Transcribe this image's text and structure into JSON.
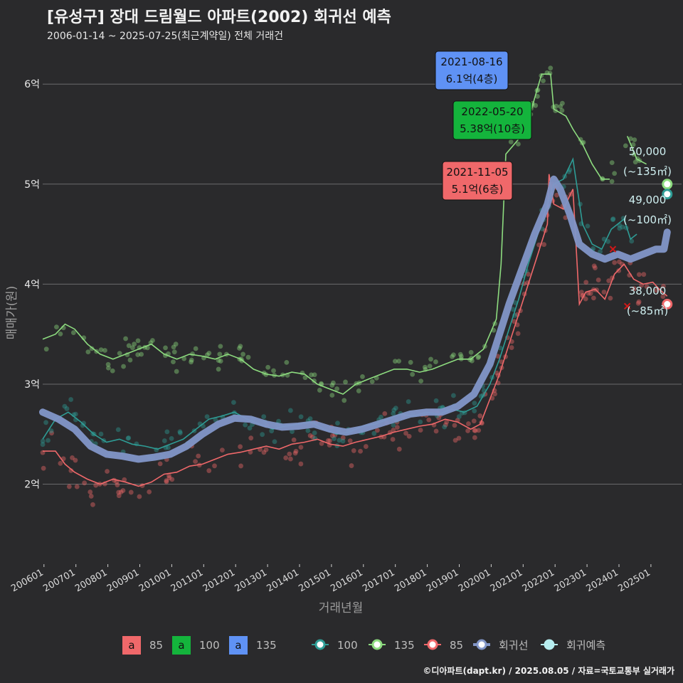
{
  "title": "[유성구] 장대 드림월드 아파트(2002) 회귀선 예측",
  "subtitle": "2006-01-14 ~ 2025-07-25(최근계약일) 전체 거래건",
  "footer": "©디아파트(dapt.kr) / 2025.08.05 / 자료=국토교통부 실거래가",
  "chart_data": {
    "type": "line",
    "xlabel": "거래년월",
    "ylabel": "매매가(원)",
    "xlim": [
      2006.0,
      2026.0
    ],
    "ylim": [
      1.2,
      6.4
    ],
    "y_ticks": [
      {
        "v": 2,
        "label": "2억"
      },
      {
        "v": 3,
        "label": "3억"
      },
      {
        "v": 4,
        "label": "4억"
      },
      {
        "v": 5,
        "label": "5억"
      },
      {
        "v": 6,
        "label": "6억"
      }
    ],
    "x_ticks": [
      "200601",
      "200701",
      "200801",
      "200901",
      "201001",
      "201101",
      "201201",
      "201301",
      "201401",
      "201501",
      "201601",
      "201701",
      "201801",
      "201901",
      "202001",
      "202101",
      "202201",
      "202301",
      "202401",
      "202501"
    ],
    "colors": {
      "s85": "#f0686a",
      "s100": "#2e9d96",
      "s135": "#8ddc7f",
      "reg": "#8296c8",
      "pred": "#b7eef0",
      "box85": "#f0686a",
      "box100": "#14b43c",
      "box135": "#5f92f5"
    },
    "series": [
      {
        "name": "85",
        "color": "#f0686a",
        "points": [
          [
            2006.0,
            2.33
          ],
          [
            2006.4,
            2.33
          ],
          [
            2006.7,
            2.2
          ],
          [
            2007.0,
            2.12
          ],
          [
            2007.4,
            2.05
          ],
          [
            2007.8,
            2.0
          ],
          [
            2008.2,
            2.05
          ],
          [
            2008.6,
            2.02
          ],
          [
            2009.0,
            1.98
          ],
          [
            2009.4,
            2.02
          ],
          [
            2009.8,
            2.1
          ],
          [
            2010.2,
            2.12
          ],
          [
            2010.6,
            2.18
          ],
          [
            2011.0,
            2.2
          ],
          [
            2011.4,
            2.25
          ],
          [
            2011.8,
            2.3
          ],
          [
            2012.2,
            2.32
          ],
          [
            2012.6,
            2.35
          ],
          [
            2013.0,
            2.38
          ],
          [
            2013.4,
            2.35
          ],
          [
            2013.8,
            2.4
          ],
          [
            2014.2,
            2.42
          ],
          [
            2014.6,
            2.45
          ],
          [
            2015.0,
            2.4
          ],
          [
            2015.4,
            2.38
          ],
          [
            2015.8,
            2.42
          ],
          [
            2016.2,
            2.45
          ],
          [
            2016.6,
            2.48
          ],
          [
            2017.0,
            2.52
          ],
          [
            2017.4,
            2.55
          ],
          [
            2017.8,
            2.58
          ],
          [
            2018.2,
            2.6
          ],
          [
            2018.6,
            2.65
          ],
          [
            2019.0,
            2.62
          ],
          [
            2019.4,
            2.55
          ],
          [
            2019.7,
            2.6
          ],
          [
            2020.0,
            2.85
          ],
          [
            2020.3,
            3.1
          ],
          [
            2020.6,
            3.4
          ],
          [
            2020.9,
            3.7
          ],
          [
            2021.2,
            4.0
          ],
          [
            2021.5,
            4.3
          ],
          [
            2021.8,
            4.6
          ],
          [
            2021.85,
            5.1
          ],
          [
            2022.0,
            4.8
          ],
          [
            2022.3,
            4.75
          ],
          [
            2022.6,
            4.95
          ],
          [
            2022.8,
            3.8
          ],
          [
            2023.0,
            3.92
          ],
          [
            2023.3,
            3.95
          ],
          [
            2023.6,
            3.85
          ],
          [
            2023.9,
            4.1
          ],
          [
            2024.2,
            4.2
          ],
          [
            2024.5,
            4.05
          ],
          [
            2024.8,
            4.0
          ],
          [
            2025.1,
            4.02
          ],
          [
            2025.3,
            3.95
          ],
          [
            2025.55,
            3.88
          ]
        ]
      },
      {
        "name": "100",
        "color": "#2e9d96",
        "points": [
          [
            2006.0,
            2.45
          ],
          [
            2006.4,
            2.65
          ],
          [
            2006.8,
            2.72
          ],
          [
            2007.2,
            2.62
          ],
          [
            2007.6,
            2.5
          ],
          [
            2008.0,
            2.42
          ],
          [
            2008.4,
            2.45
          ],
          [
            2008.8,
            2.4
          ],
          [
            2009.2,
            2.38
          ],
          [
            2009.6,
            2.35
          ],
          [
            2010.0,
            2.4
          ],
          [
            2010.4,
            2.45
          ],
          [
            2010.8,
            2.55
          ],
          [
            2011.2,
            2.65
          ],
          [
            2011.6,
            2.68
          ],
          [
            2012.0,
            2.72
          ],
          [
            2012.4,
            2.65
          ],
          [
            2012.8,
            2.6
          ],
          [
            2013.2,
            2.55
          ],
          [
            2013.6,
            2.58
          ],
          [
            2014.0,
            2.6
          ],
          [
            2014.4,
            2.62
          ],
          [
            2014.8,
            2.55
          ],
          [
            2015.2,
            2.5
          ],
          [
            2015.6,
            2.52
          ],
          [
            2016.0,
            2.58
          ],
          [
            2016.4,
            2.6
          ],
          [
            2016.8,
            2.65
          ],
          [
            2017.2,
            2.7
          ],
          [
            2017.6,
            2.68
          ],
          [
            2018.0,
            2.72
          ],
          [
            2018.4,
            2.7
          ],
          [
            2018.8,
            2.75
          ],
          [
            2019.2,
            2.72
          ],
          [
            2019.6,
            2.78
          ],
          [
            2020.0,
            3.0
          ],
          [
            2020.3,
            3.25
          ],
          [
            2020.6,
            3.55
          ],
          [
            2020.9,
            3.85
          ],
          [
            2021.2,
            4.2
          ],
          [
            2021.5,
            4.5
          ],
          [
            2021.8,
            4.8
          ],
          [
            2022.0,
            5.0
          ],
          [
            2022.3,
            5.05
          ],
          [
            2022.6,
            5.25
          ],
          [
            2022.9,
            4.6
          ],
          [
            2023.2,
            4.4
          ],
          [
            2023.5,
            4.35
          ],
          [
            2023.8,
            4.55
          ],
          [
            2024.0,
            4.6
          ],
          [
            2024.2,
            4.65
          ],
          [
            2024.4,
            4.45
          ],
          [
            2024.6,
            4.5
          ]
        ]
      },
      {
        "name": "135",
        "color": "#8ddc7f",
        "points": [
          [
            2006.0,
            3.45
          ],
          [
            2006.4,
            3.5
          ],
          [
            2006.7,
            3.6
          ],
          [
            2007.0,
            3.55
          ],
          [
            2007.4,
            3.4
          ],
          [
            2007.8,
            3.3
          ],
          [
            2008.2,
            3.25
          ],
          [
            2008.6,
            3.3
          ],
          [
            2009.0,
            3.35
          ],
          [
            2009.4,
            3.4
          ],
          [
            2009.8,
            3.3
          ],
          [
            2010.2,
            3.25
          ],
          [
            2010.6,
            3.3
          ],
          [
            2011.0,
            3.28
          ],
          [
            2011.4,
            3.25
          ],
          [
            2011.8,
            3.3
          ],
          [
            2012.2,
            3.25
          ],
          [
            2012.6,
            3.15
          ],
          [
            2013.0,
            3.1
          ],
          [
            2013.4,
            3.08
          ],
          [
            2013.8,
            3.12
          ],
          [
            2014.2,
            3.1
          ],
          [
            2014.6,
            3.0
          ],
          [
            2015.0,
            2.95
          ],
          [
            2015.4,
            2.9
          ],
          [
            2015.8,
            3.0
          ],
          [
            2016.2,
            3.05
          ],
          [
            2016.6,
            3.1
          ],
          [
            2017.0,
            3.15
          ],
          [
            2017.4,
            3.15
          ],
          [
            2017.8,
            3.12
          ],
          [
            2018.2,
            3.15
          ],
          [
            2018.6,
            3.2
          ],
          [
            2019.0,
            3.25
          ],
          [
            2019.4,
            3.25
          ],
          [
            2019.8,
            3.35
          ],
          [
            2020.0,
            3.5
          ],
          [
            2020.2,
            3.65
          ],
          [
            2020.35,
            4.2
          ],
          [
            2020.5,
            5.3
          ],
          [
            2020.9,
            5.45
          ],
          [
            2021.3,
            5.75
          ],
          [
            2021.62,
            6.1
          ],
          [
            2021.9,
            6.1
          ],
          [
            2022.0,
            5.75
          ],
          [
            2022.38,
            5.68
          ],
          [
            2022.6,
            5.55
          ],
          [
            2022.9,
            5.4
          ],
          [
            2023.2,
            5.2
          ],
          [
            2023.5,
            5.05
          ],
          [
            2023.75,
            5.05
          ],
          [
            null,
            null
          ],
          [
            2024.3,
            5.48
          ],
          [
            2024.6,
            5.25
          ],
          [
            2024.9,
            5.2
          ]
        ]
      }
    ],
    "scatter": [
      {
        "name": "85",
        "color": "#f0686a",
        "center": "s85",
        "spread": 0.18,
        "n": 190
      },
      {
        "name": "100",
        "color": "#2e9d96",
        "center": "s100",
        "spread": 0.12,
        "n": 140
      },
      {
        "name": "135",
        "color": "#8ddc7f",
        "center": "s135",
        "spread": 0.12,
        "n": 150
      }
    ],
    "regression": {
      "name": "회귀선",
      "color": "#8296c8",
      "points": [
        [
          2006.0,
          2.72
        ],
        [
          2006.5,
          2.65
        ],
        [
          2007.0,
          2.55
        ],
        [
          2007.5,
          2.38
        ],
        [
          2008.0,
          2.3
        ],
        [
          2008.5,
          2.28
        ],
        [
          2009.0,
          2.25
        ],
        [
          2009.5,
          2.27
        ],
        [
          2010.0,
          2.3
        ],
        [
          2010.5,
          2.38
        ],
        [
          2011.0,
          2.5
        ],
        [
          2011.5,
          2.6
        ],
        [
          2012.0,
          2.66
        ],
        [
          2012.5,
          2.65
        ],
        [
          2013.0,
          2.6
        ],
        [
          2013.5,
          2.57
        ],
        [
          2014.0,
          2.58
        ],
        [
          2014.5,
          2.6
        ],
        [
          2015.0,
          2.55
        ],
        [
          2015.5,
          2.52
        ],
        [
          2016.0,
          2.55
        ],
        [
          2016.5,
          2.6
        ],
        [
          2017.0,
          2.65
        ],
        [
          2017.5,
          2.7
        ],
        [
          2018.0,
          2.72
        ],
        [
          2018.5,
          2.72
        ],
        [
          2019.0,
          2.78
        ],
        [
          2019.5,
          2.9
        ],
        [
          2020.0,
          3.2
        ],
        [
          2020.3,
          3.5
        ],
        [
          2020.6,
          3.8
        ],
        [
          2021.0,
          4.15
        ],
        [
          2021.4,
          4.5
        ],
        [
          2021.8,
          4.8
        ],
        [
          2022.0,
          5.05
        ],
        [
          2022.2,
          4.95
        ],
        [
          2022.5,
          4.7
        ],
        [
          2022.8,
          4.4
        ],
        [
          2023.2,
          4.3
        ],
        [
          2023.6,
          4.25
        ],
        [
          2024.0,
          4.3
        ],
        [
          2024.4,
          4.25
        ],
        [
          2024.8,
          4.3
        ],
        [
          2025.2,
          4.35
        ],
        [
          2025.45,
          4.35
        ],
        [
          2025.55,
          4.52
        ]
      ]
    },
    "predictions": [
      {
        "x": 2025.55,
        "y": 5.0,
        "color": "#8ddc7f",
        "value": "50,000",
        "area": "(~135㎡)"
      },
      {
        "x": 2025.55,
        "y": 4.9,
        "color": "#2e9d96",
        "value": "49,000",
        "area": "(~100㎡)"
      },
      {
        "x": 2025.55,
        "y": 3.8,
        "color": "#f0686a",
        "value": "38,000",
        "area": "(~85㎡)"
      }
    ],
    "callouts": [
      {
        "date": "2021-08-16",
        "price": "6.1억(4층)",
        "color": "#5f92f5",
        "x": 2021.62,
        "y": 6.1
      },
      {
        "date": "2022-05-20",
        "price": "5.38억(10층)",
        "color": "#14b43c",
        "x": 2022.38,
        "y": 5.38
      },
      {
        "date": "2021-11-05",
        "price": "5.1억(6층)",
        "color": "#f0686a",
        "x": 2021.85,
        "y": 5.1
      }
    ],
    "legend_boxes": [
      {
        "glyph": "a",
        "label": "85",
        "color": "#f0686a"
      },
      {
        "glyph": "a",
        "label": "100",
        "color": "#14b43c"
      },
      {
        "glyph": "a",
        "label": "135",
        "color": "#5f92f5"
      }
    ],
    "legend_lines": [
      {
        "label": "100",
        "color": "#2e9d96"
      },
      {
        "label": "135",
        "color": "#8ddc7f"
      },
      {
        "label": "85",
        "color": "#f0686a"
      },
      {
        "label": "회귀선",
        "color": "#8296c8"
      },
      {
        "label": "회귀예측",
        "color": "#b7eef0"
      }
    ]
  }
}
